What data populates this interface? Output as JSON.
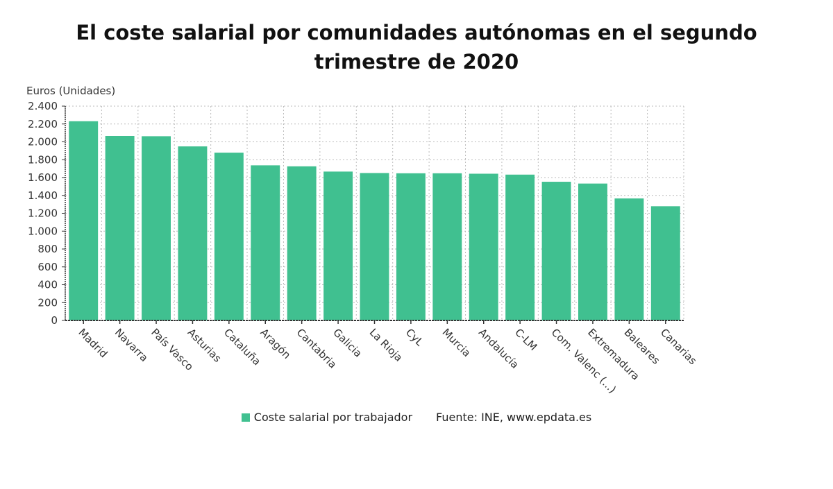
{
  "title_lines": [
    "El coste salarial por comunidades autónomas en el segundo",
    "trimestre de 2020"
  ],
  "legend": {
    "series_label": "Coste salarial por trabajador",
    "source": "Fuente: INE, www.epdata.es"
  },
  "colors": {
    "bar": "#40c090",
    "grid": "#bbbbbb",
    "axis": "#333333"
  },
  "chart_data": {
    "type": "bar",
    "title": "El coste salarial por comunidades autónomas en el segundo trimestre de 2020",
    "xlabel": "",
    "ylabel": "Euros (Unidades)",
    "ylim": [
      0,
      2400
    ],
    "yticks": [
      0,
      200,
      400,
      600,
      800,
      1000,
      1200,
      1400,
      1600,
      1800,
      2000,
      2200,
      2400
    ],
    "ytick_labels": [
      "0",
      "200",
      "400",
      "600",
      "800",
      "1.000",
      "1.200",
      "1.400",
      "1.600",
      "1.800",
      "2.000",
      "2.200",
      "2.400"
    ],
    "grid": true,
    "legend_position": "bottom",
    "categories": [
      "Madrid",
      "Navarra",
      "País Vasco",
      "Asturias",
      "Cataluña",
      "Aragón",
      "Cantabria",
      "Galicia",
      "La Rioja",
      "CyL",
      "Murcia",
      "Andalucía",
      "C-LM",
      "Com. Valenc (...)",
      "Extremadura",
      "Baleares",
      "Canarias"
    ],
    "series": [
      {
        "name": "Coste salarial por trabajador",
        "values": [
          2231,
          2066,
          2063,
          1949,
          1879,
          1737,
          1726,
          1667,
          1651,
          1648,
          1648,
          1643,
          1633,
          1553,
          1533,
          1366,
          1279
        ]
      }
    ]
  }
}
